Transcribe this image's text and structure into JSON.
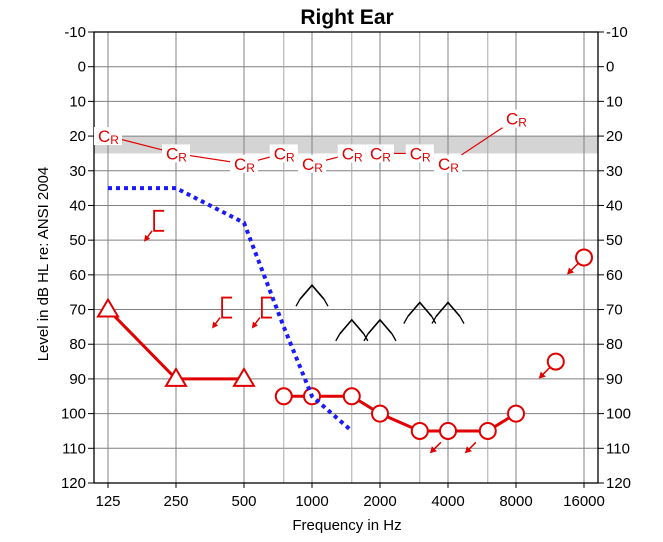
{
  "chart_data": {
    "type": "line",
    "title": "Right Ear",
    "xlabel": "Frequency in Hz",
    "ylabel": "Level in dB HL re: ANSI 2004",
    "x_scale": "log2",
    "x_ticks": [
      125,
      250,
      500,
      1000,
      2000,
      4000,
      8000,
      16000
    ],
    "x_ticks_minor": [
      750,
      1500,
      3000,
      6000
    ],
    "ylim": [
      -10,
      120
    ],
    "y_inverted": true,
    "y_ticks": [
      -10,
      0,
      10,
      20,
      30,
      40,
      50,
      60,
      70,
      80,
      90,
      100,
      110,
      120
    ],
    "grid": true,
    "shaded_band": {
      "from": 20,
      "to": 25,
      "color": "#d4d4d4"
    },
    "colors": {
      "air": "#e00000",
      "bone": "#000000",
      "threshold_line": "#1a1aff",
      "grid": "#808080"
    },
    "cr_symbol": {
      "main": "C",
      "sub": "R"
    },
    "series": [
      {
        "symbol": "triangle",
        "color": "#e00000",
        "line": true,
        "points": [
          [
            125,
            70
          ],
          [
            250,
            90
          ],
          [
            500,
            90
          ]
        ]
      },
      {
        "symbol": "circle",
        "color": "#e00000",
        "line": true,
        "points": [
          [
            750,
            95
          ],
          [
            1000,
            95
          ],
          [
            1500,
            95
          ],
          [
            2000,
            100
          ],
          [
            3000,
            105
          ],
          [
            4000,
            105
          ],
          [
            6000,
            105
          ],
          [
            8000,
            100
          ]
        ]
      },
      {
        "symbol": "circle-no-response",
        "color": "#e00000",
        "line": false,
        "points": [
          [
            16000,
            55
          ],
          [
            12000,
            85
          ]
        ]
      },
      {
        "symbol": "no-response-arrow",
        "color": "#e00000",
        "line": false,
        "points": [
          [
            3500,
            110
          ],
          [
            5000,
            110
          ]
        ]
      },
      {
        "symbol": "bracket-no-response",
        "color": "#e00000",
        "line": false,
        "points": [
          [
            200,
            45
          ],
          [
            400,
            70
          ],
          [
            600,
            70
          ]
        ]
      },
      {
        "symbol": "bone-caret-no-response",
        "color": "#000000",
        "line": false,
        "points": [
          [
            1000,
            65
          ],
          [
            1500,
            75
          ],
          [
            2000,
            75
          ],
          [
            3000,
            70
          ],
          [
            4000,
            70
          ]
        ]
      },
      {
        "symbol": "dotted-line",
        "color": "#1a1aff",
        "line": true,
        "points": [
          [
            125,
            35
          ],
          [
            250,
            35
          ],
          [
            500,
            45
          ],
          [
            750,
            75
          ],
          [
            1000,
            95
          ],
          [
            1500,
            105
          ]
        ]
      },
      {
        "symbol": "CR",
        "color": "#e00000",
        "line": true,
        "points": [
          [
            125,
            20
          ],
          [
            250,
            25
          ],
          [
            500,
            28
          ],
          [
            750,
            25
          ],
          [
            1000,
            28
          ],
          [
            1500,
            25
          ],
          [
            2000,
            25
          ],
          [
            3000,
            25
          ],
          [
            4000,
            28
          ],
          [
            8000,
            15
          ]
        ]
      }
    ]
  }
}
